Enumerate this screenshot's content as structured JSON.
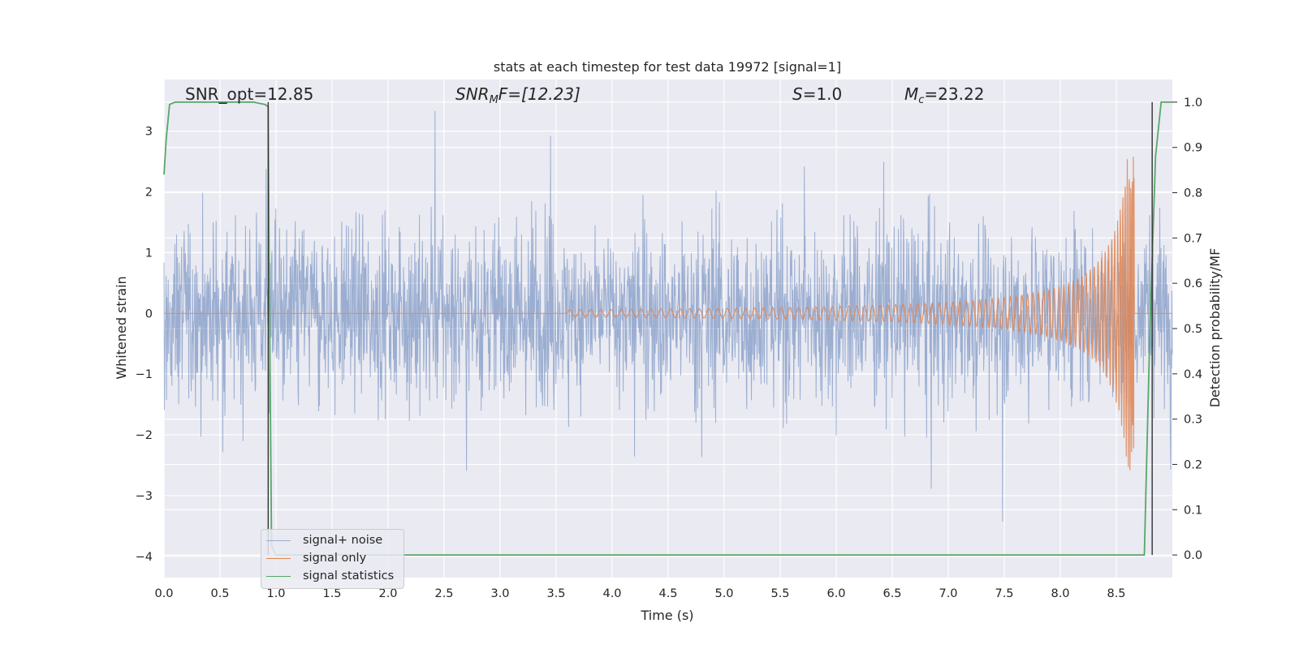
{
  "chart_data": {
    "type": "line",
    "title": "stats at each timestep for test data 19972 [signal=1]",
    "xlabel": "Time (s)",
    "ylabel": "Whitened strain",
    "y2label": "Detection probability/MF",
    "xlim": [
      0.0,
      9.0
    ],
    "ylim": [
      -4.35,
      3.85
    ],
    "y2lim": [
      -0.05,
      1.05
    ],
    "x_ticks": [
      "0.0",
      "0.5",
      "1.0",
      "1.5",
      "2.0",
      "2.5",
      "3.0",
      "3.5",
      "4.0",
      "4.5",
      "5.0",
      "5.5",
      "6.0",
      "6.5",
      "7.0",
      "7.5",
      "8.0",
      "8.5"
    ],
    "y_ticks": [
      "3",
      "2",
      "1",
      "0",
      "−1",
      "−2",
      "−3",
      "−4"
    ],
    "y2_ticks": [
      "1.0",
      "0.9",
      "0.8",
      "0.7",
      "0.6",
      "0.5",
      "0.4",
      "0.3",
      "0.2",
      "0.1",
      "0.0"
    ],
    "grid": true,
    "legend_position": "lower-left",
    "colors": {
      "background": "#eaeaf2",
      "noise": "#4c72b0",
      "signal": "#dd8452",
      "statistics": "#55a868",
      "vline": "#333333"
    },
    "annotations": {
      "snr_opt": "SNR_opt=12.85",
      "snr_mf_prefix": "SNR",
      "snr_mf_sub": "M",
      "snr_mf_suffix": "F=[12.23]",
      "s_label": "S",
      "s_value": "=1.0",
      "mc_label": "M",
      "mc_sub": "c",
      "mc_value": "=23.22"
    },
    "series": [
      {
        "name": "signal+ noise",
        "description_values": {
          "x_range": [
            0.0,
            9.0
          ],
          "typical_amplitude": 1.3,
          "max": 3.46,
          "min": -3.72
        }
      },
      {
        "name": "signal only",
        "chirp": {
          "onset": 3.6,
          "end": 8.66,
          "peak_amplitude": 2.6,
          "min_amplitude": -2.35
        }
      },
      {
        "name": "signal statistics",
        "x": [
          0.0,
          0.02,
          0.05,
          0.1,
          0.2,
          0.3,
          0.5,
          0.7,
          0.8,
          0.9,
          0.93,
          0.94,
          0.96,
          1.0,
          1.5,
          2.0,
          4.0,
          6.0,
          8.0,
          8.7,
          8.75,
          8.8,
          8.85,
          8.9,
          8.95,
          9.0
        ],
        "values": [
          0.84,
          0.92,
          0.995,
          1.0,
          1.0,
          1.0,
          1.0,
          1.0,
          1.0,
          0.995,
          0.99,
          0.6,
          0.02,
          0.0,
          0.0,
          0.0,
          0.0,
          0.0,
          0.0,
          0.0,
          0.0,
          0.5,
          0.88,
          1.0,
          1.0,
          1.0
        ]
      }
    ],
    "vertical_lines": [
      0.93,
      8.82
    ],
    "legend": [
      "signal+ noise",
      "signal only",
      "signal statistics"
    ]
  }
}
